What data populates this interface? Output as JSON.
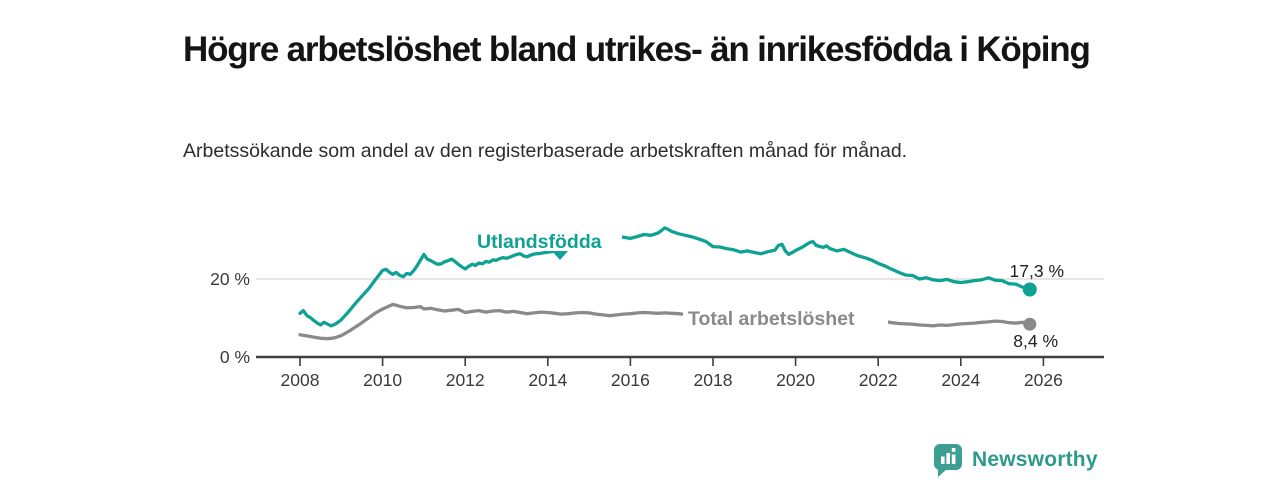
{
  "chart_data": {
    "type": "line",
    "title": "Högre arbetslöshet bland utrikes- än inrikesfödda i Köping",
    "subtitle": "Arbetssökande som andel av den registerbaserade arbetskraften månad för månad.",
    "unit": "%",
    "x_domain": [
      2008,
      2026
    ],
    "x_ticks": [
      "2008",
      "2010",
      "2012",
      "2014",
      "2016",
      "2018",
      "2020",
      "2022",
      "2024",
      "2026"
    ],
    "y_ticks": [
      "0 %",
      "20 %"
    ],
    "ylim": [
      0,
      34
    ],
    "grid": "single horizontal gridline at 20 %",
    "legend_position": "inline labels on lines",
    "series": [
      {
        "name": "Utlandsfödda",
        "color": "#0FA294",
        "end_label": "17,3 %",
        "end_value": 17.3,
        "points": [
          [
            2008.0,
            11.2
          ],
          [
            2008.08,
            11.9
          ],
          [
            2008.17,
            10.6
          ],
          [
            2008.25,
            10.1
          ],
          [
            2008.33,
            9.4
          ],
          [
            2008.42,
            8.7
          ],
          [
            2008.5,
            8.2
          ],
          [
            2008.58,
            8.9
          ],
          [
            2008.67,
            8.4
          ],
          [
            2008.75,
            8.0
          ],
          [
            2008.83,
            8.3
          ],
          [
            2008.92,
            8.9
          ],
          [
            2009.0,
            9.6
          ],
          [
            2009.17,
            11.5
          ],
          [
            2009.33,
            13.6
          ],
          [
            2009.5,
            15.6
          ],
          [
            2009.67,
            17.6
          ],
          [
            2009.83,
            19.9
          ],
          [
            2010.0,
            22.2
          ],
          [
            2010.08,
            22.5
          ],
          [
            2010.17,
            21.7
          ],
          [
            2010.25,
            21.2
          ],
          [
            2010.33,
            21.7
          ],
          [
            2010.42,
            20.9
          ],
          [
            2010.5,
            20.6
          ],
          [
            2010.58,
            21.4
          ],
          [
            2010.67,
            21.2
          ],
          [
            2010.75,
            22.1
          ],
          [
            2010.83,
            23.3
          ],
          [
            2010.92,
            24.9
          ],
          [
            2011.0,
            26.3
          ],
          [
            2011.08,
            25.1
          ],
          [
            2011.17,
            24.7
          ],
          [
            2011.25,
            24.2
          ],
          [
            2011.33,
            23.8
          ],
          [
            2011.42,
            23.9
          ],
          [
            2011.5,
            24.4
          ],
          [
            2011.58,
            24.7
          ],
          [
            2011.67,
            25.1
          ],
          [
            2011.75,
            24.5
          ],
          [
            2011.83,
            23.8
          ],
          [
            2011.92,
            23.1
          ],
          [
            2012.0,
            22.6
          ],
          [
            2012.08,
            23.2
          ],
          [
            2012.17,
            23.8
          ],
          [
            2012.25,
            23.5
          ],
          [
            2012.33,
            24.1
          ],
          [
            2012.42,
            23.9
          ],
          [
            2012.5,
            24.5
          ],
          [
            2012.58,
            24.3
          ],
          [
            2012.67,
            24.9
          ],
          [
            2012.75,
            24.8
          ],
          [
            2012.83,
            25.2
          ],
          [
            2012.92,
            25.5
          ],
          [
            2013.0,
            25.3
          ],
          [
            2013.08,
            25.6
          ],
          [
            2013.17,
            26.0
          ],
          [
            2013.25,
            26.3
          ],
          [
            2013.33,
            26.5
          ],
          [
            2013.42,
            25.9
          ],
          [
            2013.5,
            25.7
          ],
          [
            2013.58,
            26.1
          ],
          [
            2013.67,
            26.4
          ],
          [
            2013.83,
            26.6
          ],
          [
            2014.0,
            26.9
          ],
          [
            2014.25,
            27.2
          ],
          [
            2014.5,
            27.6
          ],
          [
            2014.75,
            28.2
          ],
          [
            2015.0,
            28.8
          ],
          [
            2015.25,
            29.6
          ],
          [
            2015.5,
            30.6
          ],
          [
            2015.67,
            31.2
          ],
          [
            2015.83,
            30.7
          ],
          [
            2016.0,
            30.4
          ],
          [
            2016.17,
            30.9
          ],
          [
            2016.33,
            31.4
          ],
          [
            2016.5,
            31.2
          ],
          [
            2016.67,
            31.8
          ],
          [
            2016.75,
            32.4
          ],
          [
            2016.83,
            33.1
          ],
          [
            2016.92,
            32.7
          ],
          [
            2017.0,
            32.2
          ],
          [
            2017.17,
            31.6
          ],
          [
            2017.33,
            31.2
          ],
          [
            2017.5,
            30.8
          ],
          [
            2017.67,
            30.2
          ],
          [
            2017.83,
            29.6
          ],
          [
            2018.0,
            28.3
          ],
          [
            2018.17,
            28.2
          ],
          [
            2018.33,
            27.8
          ],
          [
            2018.5,
            27.5
          ],
          [
            2018.67,
            26.9
          ],
          [
            2018.83,
            27.2
          ],
          [
            2019.0,
            26.8
          ],
          [
            2019.17,
            26.5
          ],
          [
            2019.33,
            27.0
          ],
          [
            2019.5,
            27.4
          ],
          [
            2019.58,
            28.6
          ],
          [
            2019.67,
            28.9
          ],
          [
            2019.75,
            27.2
          ],
          [
            2019.83,
            26.3
          ],
          [
            2019.92,
            26.8
          ],
          [
            2020.0,
            27.3
          ],
          [
            2020.17,
            28.2
          ],
          [
            2020.33,
            29.3
          ],
          [
            2020.42,
            29.6
          ],
          [
            2020.5,
            28.6
          ],
          [
            2020.67,
            28.1
          ],
          [
            2020.75,
            28.5
          ],
          [
            2020.83,
            27.8
          ],
          [
            2021.0,
            27.2
          ],
          [
            2021.17,
            27.6
          ],
          [
            2021.33,
            26.8
          ],
          [
            2021.5,
            26.0
          ],
          [
            2021.67,
            25.5
          ],
          [
            2021.83,
            24.9
          ],
          [
            2022.0,
            24.0
          ],
          [
            2022.17,
            23.3
          ],
          [
            2022.33,
            22.5
          ],
          [
            2022.5,
            21.7
          ],
          [
            2022.67,
            21.0
          ],
          [
            2022.83,
            20.9
          ],
          [
            2022.92,
            20.4
          ],
          [
            2023.0,
            20.0
          ],
          [
            2023.17,
            20.3
          ],
          [
            2023.33,
            19.8
          ],
          [
            2023.5,
            19.6
          ],
          [
            2023.67,
            19.9
          ],
          [
            2023.83,
            19.3
          ],
          [
            2024.0,
            19.1
          ],
          [
            2024.17,
            19.3
          ],
          [
            2024.33,
            19.6
          ],
          [
            2024.5,
            19.8
          ],
          [
            2024.67,
            20.3
          ],
          [
            2024.83,
            19.7
          ],
          [
            2025.0,
            19.6
          ],
          [
            2025.17,
            18.8
          ],
          [
            2025.33,
            18.7
          ],
          [
            2025.5,
            17.9
          ],
          [
            2025.67,
            17.3
          ]
        ]
      },
      {
        "name": "Total arbetslöshet",
        "color": "#8A8A8A",
        "end_label": "8,4 %",
        "end_value": 8.4,
        "points": [
          [
            2008.0,
            5.7
          ],
          [
            2008.17,
            5.4
          ],
          [
            2008.33,
            5.1
          ],
          [
            2008.5,
            4.8
          ],
          [
            2008.67,
            4.7
          ],
          [
            2008.83,
            4.9
          ],
          [
            2009.0,
            5.5
          ],
          [
            2009.17,
            6.5
          ],
          [
            2009.33,
            7.6
          ],
          [
            2009.5,
            8.8
          ],
          [
            2009.67,
            10.1
          ],
          [
            2009.83,
            11.3
          ],
          [
            2010.0,
            12.3
          ],
          [
            2010.17,
            13.1
          ],
          [
            2010.25,
            13.5
          ],
          [
            2010.42,
            13.0
          ],
          [
            2010.58,
            12.6
          ],
          [
            2010.75,
            12.7
          ],
          [
            2010.92,
            12.9
          ],
          [
            2011.0,
            12.3
          ],
          [
            2011.17,
            12.5
          ],
          [
            2011.33,
            12.1
          ],
          [
            2011.5,
            11.8
          ],
          [
            2011.67,
            12.0
          ],
          [
            2011.83,
            12.2
          ],
          [
            2012.0,
            11.4
          ],
          [
            2012.17,
            11.7
          ],
          [
            2012.33,
            11.9
          ],
          [
            2012.5,
            11.5
          ],
          [
            2012.67,
            11.8
          ],
          [
            2012.83,
            11.9
          ],
          [
            2013.0,
            11.5
          ],
          [
            2013.17,
            11.7
          ],
          [
            2013.33,
            11.4
          ],
          [
            2013.5,
            11.1
          ],
          [
            2013.67,
            11.3
          ],
          [
            2013.83,
            11.5
          ],
          [
            2014.0,
            11.4
          ],
          [
            2014.17,
            11.2
          ],
          [
            2014.33,
            11.0
          ],
          [
            2014.5,
            11.1
          ],
          [
            2014.67,
            11.3
          ],
          [
            2014.83,
            11.4
          ],
          [
            2015.0,
            11.3
          ],
          [
            2015.17,
            11.0
          ],
          [
            2015.33,
            10.8
          ],
          [
            2015.5,
            10.6
          ],
          [
            2015.67,
            10.8
          ],
          [
            2015.83,
            11.0
          ],
          [
            2016.0,
            11.1
          ],
          [
            2016.17,
            11.3
          ],
          [
            2016.33,
            11.4
          ],
          [
            2016.5,
            11.3
          ],
          [
            2016.67,
            11.2
          ],
          [
            2016.83,
            11.3
          ],
          [
            2017.0,
            11.2
          ],
          [
            2017.17,
            11.1
          ],
          [
            2017.33,
            10.9
          ],
          [
            2017.5,
            10.8
          ],
          [
            2018.0,
            10.3
          ],
          [
            2018.5,
            10.0
          ],
          [
            2019.0,
            10.2
          ],
          [
            2019.5,
            10.0
          ],
          [
            2019.83,
            10.3
          ],
          [
            2020.0,
            10.6
          ],
          [
            2020.25,
            11.9
          ],
          [
            2020.5,
            12.1
          ],
          [
            2020.75,
            11.8
          ],
          [
            2021.0,
            11.4
          ],
          [
            2021.33,
            10.9
          ],
          [
            2021.67,
            10.3
          ],
          [
            2022.0,
            9.6
          ],
          [
            2022.17,
            9.1
          ],
          [
            2022.33,
            8.8
          ],
          [
            2022.5,
            8.6
          ],
          [
            2022.67,
            8.5
          ],
          [
            2022.83,
            8.4
          ],
          [
            2023.0,
            8.2
          ],
          [
            2023.17,
            8.1
          ],
          [
            2023.33,
            8.0
          ],
          [
            2023.5,
            8.2
          ],
          [
            2023.67,
            8.1
          ],
          [
            2023.83,
            8.3
          ],
          [
            2024.0,
            8.5
          ],
          [
            2024.17,
            8.6
          ],
          [
            2024.33,
            8.7
          ],
          [
            2024.5,
            8.9
          ],
          [
            2024.67,
            9.0
          ],
          [
            2024.83,
            9.2
          ],
          [
            2025.0,
            9.1
          ],
          [
            2025.17,
            8.8
          ],
          [
            2025.33,
            8.7
          ],
          [
            2025.5,
            8.9
          ],
          [
            2025.58,
            8.6
          ],
          [
            2025.67,
            8.4
          ]
        ]
      }
    ]
  },
  "colors": {
    "accent_teal": "#0FA294",
    "series_gray": "#8A8A8A",
    "axis": "#3f3f3f",
    "gridline": "#d8d8d8",
    "logo_teal": "#3d9e92",
    "logo_text_teal": "#2f9a8c",
    "title_text": "#141414"
  },
  "footer": {
    "brand_label": "Newsworthy"
  }
}
